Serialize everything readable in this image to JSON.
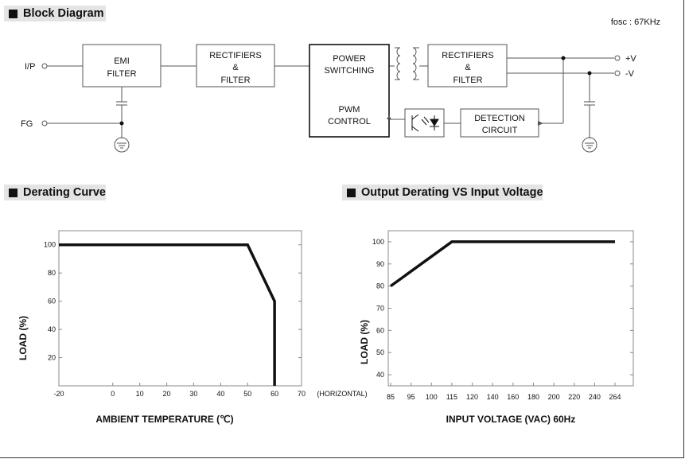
{
  "sections": {
    "block_diagram": "Block Diagram",
    "derating_curve": "Derating Curve",
    "output_derating": "Output Derating VS Input Voltage"
  },
  "block_diagram": {
    "fosc": "fosc : 67KHz",
    "input_label": "I/P",
    "fg_label": "FG",
    "out_pos": "+V",
    "out_neg": "-V",
    "emi": [
      "EMI",
      "FILTER"
    ],
    "rect1": [
      "RECTIFIERS",
      "&",
      "FILTER"
    ],
    "power": [
      "POWER",
      "SWITCHING"
    ],
    "pwm": [
      "PWM",
      "CONTROL"
    ],
    "rect2": [
      "RECTIFIERS",
      "&",
      "FILTER"
    ],
    "detection": [
      "DETECTION",
      "CIRCUIT"
    ]
  },
  "derating_chart": {
    "type": "line",
    "ylabel": "LOAD (%)",
    "xlabel": "AMBIENT TEMPERATURE (℃)",
    "x_ticks": [
      "-20",
      "0",
      "10",
      "20",
      "30",
      "40",
      "50",
      "60",
      "70"
    ],
    "x_extra": "(HORIZONTAL)",
    "y_ticks": [
      "100",
      "80",
      "60",
      "40",
      "20"
    ]
  },
  "voltage_chart": {
    "type": "line",
    "ylabel": "LOAD (%)",
    "xlabel": "INPUT VOLTAGE (VAC) 60Hz",
    "x_ticks": [
      "85",
      "95",
      "100",
      "115",
      "120",
      "140",
      "160",
      "180",
      "200",
      "220",
      "240",
      "264"
    ],
    "y_ticks": [
      "100",
      "90",
      "80",
      "70",
      "60",
      "50",
      "40"
    ]
  },
  "chart_data": [
    {
      "type": "line",
      "xlabel": "AMBIENT TEMPERATURE (℃)",
      "ylabel": "LOAD (%)",
      "x": [
        -20,
        50,
        60,
        60
      ],
      "y": [
        100,
        100,
        60,
        0
      ],
      "xlim": [
        -20,
        70
      ],
      "ylim": [
        0,
        110
      ],
      "grid": false
    },
    {
      "type": "line",
      "xlabel": "INPUT VOLTAGE (VAC) 60Hz",
      "ylabel": "LOAD (%)",
      "x": [
        "85",
        "115",
        "264"
      ],
      "y": [
        80,
        100,
        100
      ],
      "ylim": [
        35,
        105
      ],
      "grid": false
    }
  ]
}
